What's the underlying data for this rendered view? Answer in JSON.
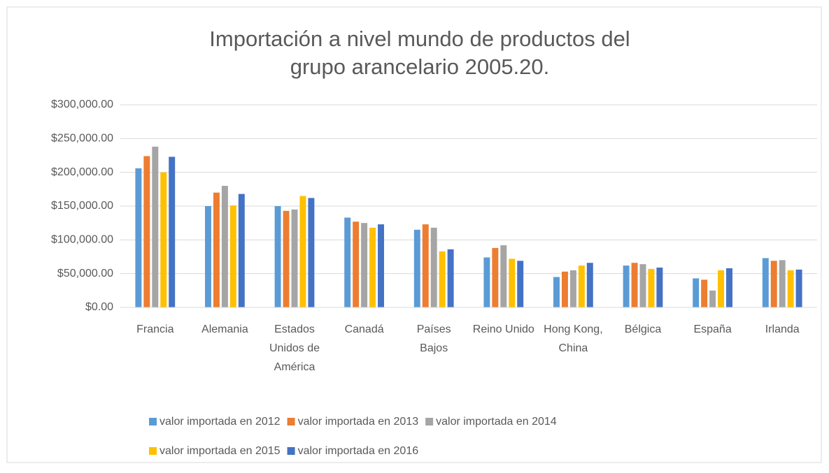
{
  "chart_data": {
    "type": "bar",
    "title": "Importación a nivel mundo de productos del grupo arancelario 2005.20.",
    "categories": [
      "Francia",
      "Alemania",
      "Estados Unidos de América",
      "Canadá",
      "Países Bajos",
      "Reino Unido",
      "Hong Kong, China",
      "Bélgica",
      "España",
      "Irlanda"
    ],
    "series": [
      {
        "name": "valor importada en 2012",
        "color": "#5b9bd5",
        "values": [
          206000,
          150000,
          150000,
          133000,
          115000,
          74000,
          45000,
          62000,
          43000,
          73000
        ]
      },
      {
        "name": "valor importada en 2013",
        "color": "#ed7d31",
        "values": [
          224000,
          170000,
          143000,
          127000,
          123000,
          88000,
          53000,
          66000,
          41000,
          69000
        ]
      },
      {
        "name": "valor importada en 2014",
        "color": "#a5a5a5",
        "values": [
          238000,
          180000,
          145000,
          125000,
          118000,
          92000,
          55000,
          64000,
          25000,
          70000
        ]
      },
      {
        "name": "valor importada en 2015",
        "color": "#ffc000",
        "values": [
          200000,
          151000,
          165000,
          118000,
          83000,
          72000,
          62000,
          57000,
          55000,
          55000
        ]
      },
      {
        "name": "valor importada en 2016",
        "color": "#4472c4",
        "values": [
          223000,
          168000,
          162000,
          123000,
          86000,
          69000,
          66000,
          59000,
          58000,
          56000
        ]
      }
    ],
    "ylim": [
      0,
      300000
    ],
    "yticks": [
      {
        "value": 0,
        "label": "$0.00"
      },
      {
        "value": 50000,
        "label": "$50,000.00"
      },
      {
        "value": 100000,
        "label": "$100,000.00"
      },
      {
        "value": 150000,
        "label": "$150,000.00"
      },
      {
        "value": 200000,
        "label": "$200,000.00"
      },
      {
        "value": 250000,
        "label": "$250,000.00"
      },
      {
        "value": 300000,
        "label": "$300,000.00"
      }
    ],
    "grid": true,
    "legend": "bottom"
  }
}
